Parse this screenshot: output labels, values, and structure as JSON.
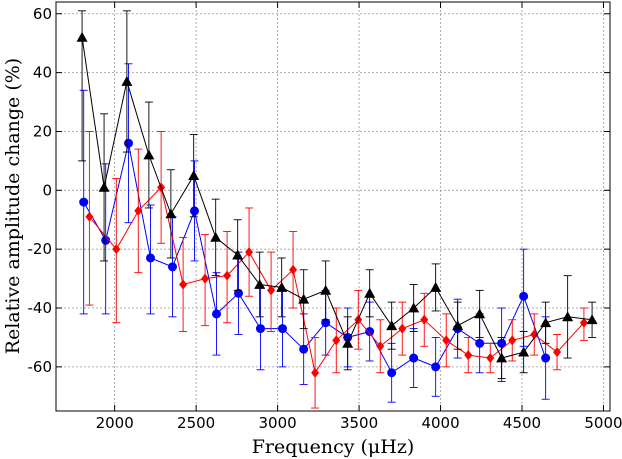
{
  "chart_data": {
    "type": "scatter",
    "title": "",
    "xlabel": "Frequency (μHz)",
    "ylabel": "Relative amplitude change (%)",
    "xlim": [
      1640,
      5040
    ],
    "ylim": [
      -75,
      64
    ],
    "xticks": [
      2000,
      2500,
      3000,
      3500,
      4000,
      4500,
      5000
    ],
    "yticks": [
      -60,
      -40,
      -20,
      0,
      20,
      40,
      60
    ],
    "grid": true,
    "legend": "none",
    "series": [
      {
        "color": "#0000ff",
        "marker": "circle",
        "points": [
          {
            "x": 1810,
            "y": -4,
            "lo": -42,
            "hi": 34
          },
          {
            "x": 1945,
            "y": -17,
            "lo": -42,
            "hi": 9
          },
          {
            "x": 2085,
            "y": 16,
            "lo": -11,
            "hi": 43
          },
          {
            "x": 2220,
            "y": -23,
            "lo": -42,
            "hi": -5
          },
          {
            "x": 2355,
            "y": -26,
            "lo": -43,
            "hi": -9
          },
          {
            "x": 2490,
            "y": -7,
            "lo": -24,
            "hi": 10
          },
          {
            "x": 2625,
            "y": -42,
            "lo": -56,
            "hi": -28
          },
          {
            "x": 2760,
            "y": -35,
            "lo": -49,
            "hi": -21
          },
          {
            "x": 2895,
            "y": -47,
            "lo": -61,
            "hi": -33
          },
          {
            "x": 3030,
            "y": -47,
            "lo": -60,
            "hi": -34
          },
          {
            "x": 3160,
            "y": -54,
            "lo": -66,
            "hi": -42
          },
          {
            "x": 3295,
            "y": -45,
            "lo": -56,
            "hi": -34
          },
          {
            "x": 3430,
            "y": -50,
            "lo": -60,
            "hi": -40
          },
          {
            "x": 3565,
            "y": -48,
            "lo": -58,
            "hi": -38
          },
          {
            "x": 3700,
            "y": -62,
            "lo": -72,
            "hi": -52
          },
          {
            "x": 3835,
            "y": -57,
            "lo": -67,
            "hi": -47
          },
          {
            "x": 3970,
            "y": -60,
            "lo": -70,
            "hi": -50
          },
          {
            "x": 4105,
            "y": -47,
            "lo": -57,
            "hi": -37
          },
          {
            "x": 4240,
            "y": -52,
            "lo": -62,
            "hi": -42
          },
          {
            "x": 4375,
            "y": -52,
            "lo": -65,
            "hi": -40
          },
          {
            "x": 4510,
            "y": -36,
            "lo": -53,
            "hi": -20
          },
          {
            "x": 4645,
            "y": -57,
            "lo": -71,
            "hi": -43
          }
        ]
      },
      {
        "color": "#ff0000",
        "marker": "diamond",
        "points": [
          {
            "x": 1845,
            "y": -9,
            "lo": -39,
            "hi": 20
          },
          {
            "x": 2010,
            "y": -20,
            "lo": -45,
            "hi": 4
          },
          {
            "x": 2145,
            "y": -7,
            "lo": -28,
            "hi": 14
          },
          {
            "x": 2285,
            "y": 1,
            "lo": -18,
            "hi": 20
          },
          {
            "x": 2420,
            "y": -32,
            "lo": -48,
            "hi": -16
          },
          {
            "x": 2555,
            "y": -30,
            "lo": -46,
            "hi": -15
          },
          {
            "x": 2690,
            "y": -29,
            "lo": -45,
            "hi": -14
          },
          {
            "x": 2825,
            "y": -21,
            "lo": -36,
            "hi": -6
          },
          {
            "x": 2960,
            "y": -34,
            "lo": -48,
            "hi": -21
          },
          {
            "x": 3095,
            "y": -27,
            "lo": -40,
            "hi": -14
          },
          {
            "x": 3230,
            "y": -62,
            "lo": -74,
            "hi": -50
          },
          {
            "x": 3360,
            "y": -51,
            "lo": -62,
            "hi": -40
          },
          {
            "x": 3495,
            "y": -44,
            "lo": -54,
            "hi": -34
          },
          {
            "x": 3630,
            "y": -53,
            "lo": -62,
            "hi": -44
          },
          {
            "x": 3765,
            "y": -47,
            "lo": -56,
            "hi": -38
          },
          {
            "x": 3900,
            "y": -44,
            "lo": -53,
            "hi": -35
          },
          {
            "x": 4035,
            "y": -51,
            "lo": -60,
            "hi": -42
          },
          {
            "x": 4170,
            "y": -56,
            "lo": -62,
            "hi": -50
          },
          {
            "x": 4305,
            "y": -57,
            "lo": -62,
            "hi": -52
          },
          {
            "x": 4440,
            "y": -51,
            "lo": -58,
            "hi": -44
          },
          {
            "x": 4575,
            "y": -49,
            "lo": -56,
            "hi": -42
          },
          {
            "x": 4715,
            "y": -55,
            "lo": -61,
            "hi": -49
          },
          {
            "x": 4880,
            "y": -45,
            "lo": -51,
            "hi": -40
          }
        ]
      },
      {
        "color": "#000000",
        "marker": "triangle",
        "points": [
          {
            "x": 1800,
            "y": 52,
            "lo": 10,
            "hi": 61
          },
          {
            "x": 1935,
            "y": 1,
            "lo": -24,
            "hi": 26
          },
          {
            "x": 2075,
            "y": 37,
            "lo": 13,
            "hi": 61
          },
          {
            "x": 2210,
            "y": 12,
            "lo": -6,
            "hi": 30
          },
          {
            "x": 2345,
            "y": -8,
            "lo": -23,
            "hi": 7
          },
          {
            "x": 2485,
            "y": 5,
            "lo": -9,
            "hi": 19
          },
          {
            "x": 2620,
            "y": -16,
            "lo": -29,
            "hi": -3
          },
          {
            "x": 2755,
            "y": -22,
            "lo": -34,
            "hi": -10
          },
          {
            "x": 2890,
            "y": -32,
            "lo": -43,
            "hi": -21
          },
          {
            "x": 3025,
            "y": -33,
            "lo": -43,
            "hi": -23
          },
          {
            "x": 3160,
            "y": -37,
            "lo": -47,
            "hi": -27
          },
          {
            "x": 3295,
            "y": -34,
            "lo": -44,
            "hi": -24
          },
          {
            "x": 3430,
            "y": -52,
            "lo": -61,
            "hi": -43
          },
          {
            "x": 3565,
            "y": -35,
            "lo": -43,
            "hi": -27
          },
          {
            "x": 3700,
            "y": -46,
            "lo": -54,
            "hi": -38
          },
          {
            "x": 3835,
            "y": -40,
            "lo": -48,
            "hi": -32
          },
          {
            "x": 3970,
            "y": -33,
            "lo": -41,
            "hi": -25
          },
          {
            "x": 4105,
            "y": -46,
            "lo": -54,
            "hi": -38
          },
          {
            "x": 4240,
            "y": -42,
            "lo": -50,
            "hi": -34
          },
          {
            "x": 4375,
            "y": -57,
            "lo": -64,
            "hi": -50
          },
          {
            "x": 4510,
            "y": -55,
            "lo": -62,
            "hi": -48
          },
          {
            "x": 4645,
            "y": -45,
            "lo": -52,
            "hi": -38
          },
          {
            "x": 4780,
            "y": -43,
            "lo": -57,
            "hi": -29
          },
          {
            "x": 4930,
            "y": -44,
            "lo": -50,
            "hi": -38
          }
        ]
      }
    ]
  }
}
